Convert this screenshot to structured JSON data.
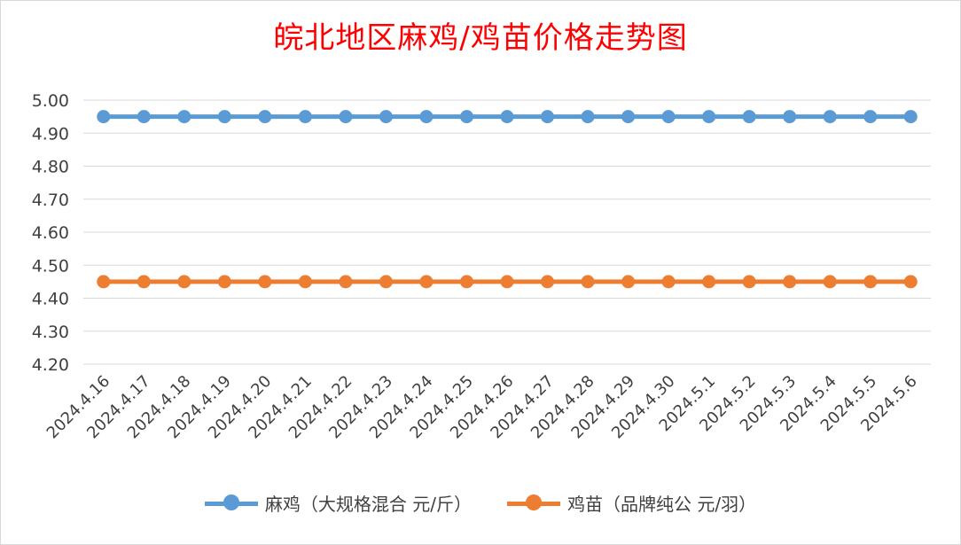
{
  "chart_data": {
    "type": "line",
    "title": "皖北地区麻鸡/鸡苗价格走势图",
    "categories": [
      "2024.4.16",
      "2024.4.17",
      "2024.4.18",
      "2024.4.19",
      "2024.4.20",
      "2024.4.21",
      "2024.4.22",
      "2024.4.23",
      "2024.4.24",
      "2024.4.25",
      "2024.4.26",
      "2024.4.27",
      "2024.4.28",
      "2024.4.29",
      "2024.4.30",
      "2024.5.1",
      "2024.5.2",
      "2024.5.3",
      "2024.5.4",
      "2024.5.5",
      "2024.5.6"
    ],
    "yticks": [
      "4.20",
      "4.30",
      "4.40",
      "4.50",
      "4.60",
      "4.70",
      "4.80",
      "4.90",
      "5.00"
    ],
    "ylim": [
      4.2,
      5.0
    ],
    "grid": true,
    "legend_position": "bottom",
    "series": [
      {
        "name": "麻鸡（大规格混合 元/斤）",
        "color": "#5b9bd5",
        "values": [
          4.95,
          4.95,
          4.95,
          4.95,
          4.95,
          4.95,
          4.95,
          4.95,
          4.95,
          4.95,
          4.95,
          4.95,
          4.95,
          4.95,
          4.95,
          4.95,
          4.95,
          4.95,
          4.95,
          4.95,
          4.95
        ]
      },
      {
        "name": "鸡苗（品牌纯公 元/羽）",
        "color": "#ed7d31",
        "values": [
          4.45,
          4.45,
          4.45,
          4.45,
          4.45,
          4.45,
          4.45,
          4.45,
          4.45,
          4.45,
          4.45,
          4.45,
          4.45,
          4.45,
          4.45,
          4.45,
          4.45,
          4.45,
          4.45,
          4.45,
          4.45
        ]
      }
    ]
  }
}
